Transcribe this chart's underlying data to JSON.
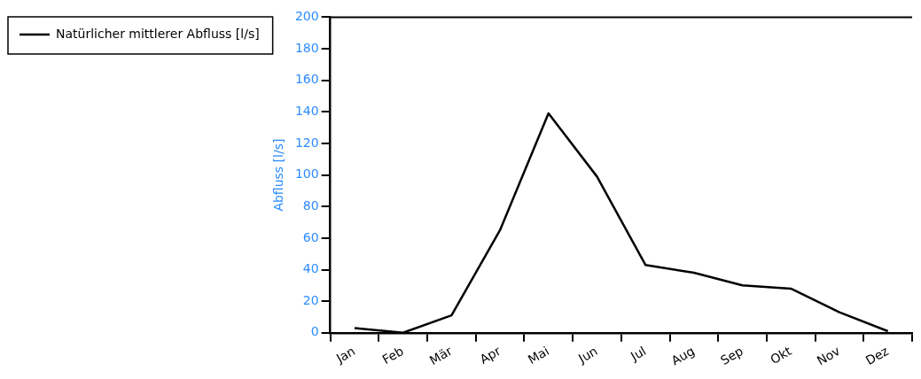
{
  "chart_data": {
    "type": "line",
    "ylabel": "Abfluss [l/s]",
    "categories": [
      "Jan",
      "Feb",
      "Mär",
      "Apr",
      "Mai",
      "Jun",
      "Jul",
      "Aug",
      "Sep",
      "Okt",
      "Nov",
      "Dez"
    ],
    "series": [
      {
        "name": "Natürlicher mittlerer Abfluss [l/s]",
        "color": "#000000",
        "values": [
          3,
          0,
          11,
          65,
          139,
          99,
          43,
          38,
          30,
          28,
          13,
          1
        ]
      }
    ],
    "ylim": [
      0,
      200
    ],
    "yticks": [
      0,
      20,
      40,
      60,
      80,
      100,
      120,
      140,
      160,
      180,
      200
    ],
    "grid": false,
    "legend": "top left",
    "marker": "none",
    "line_style": "solid"
  }
}
